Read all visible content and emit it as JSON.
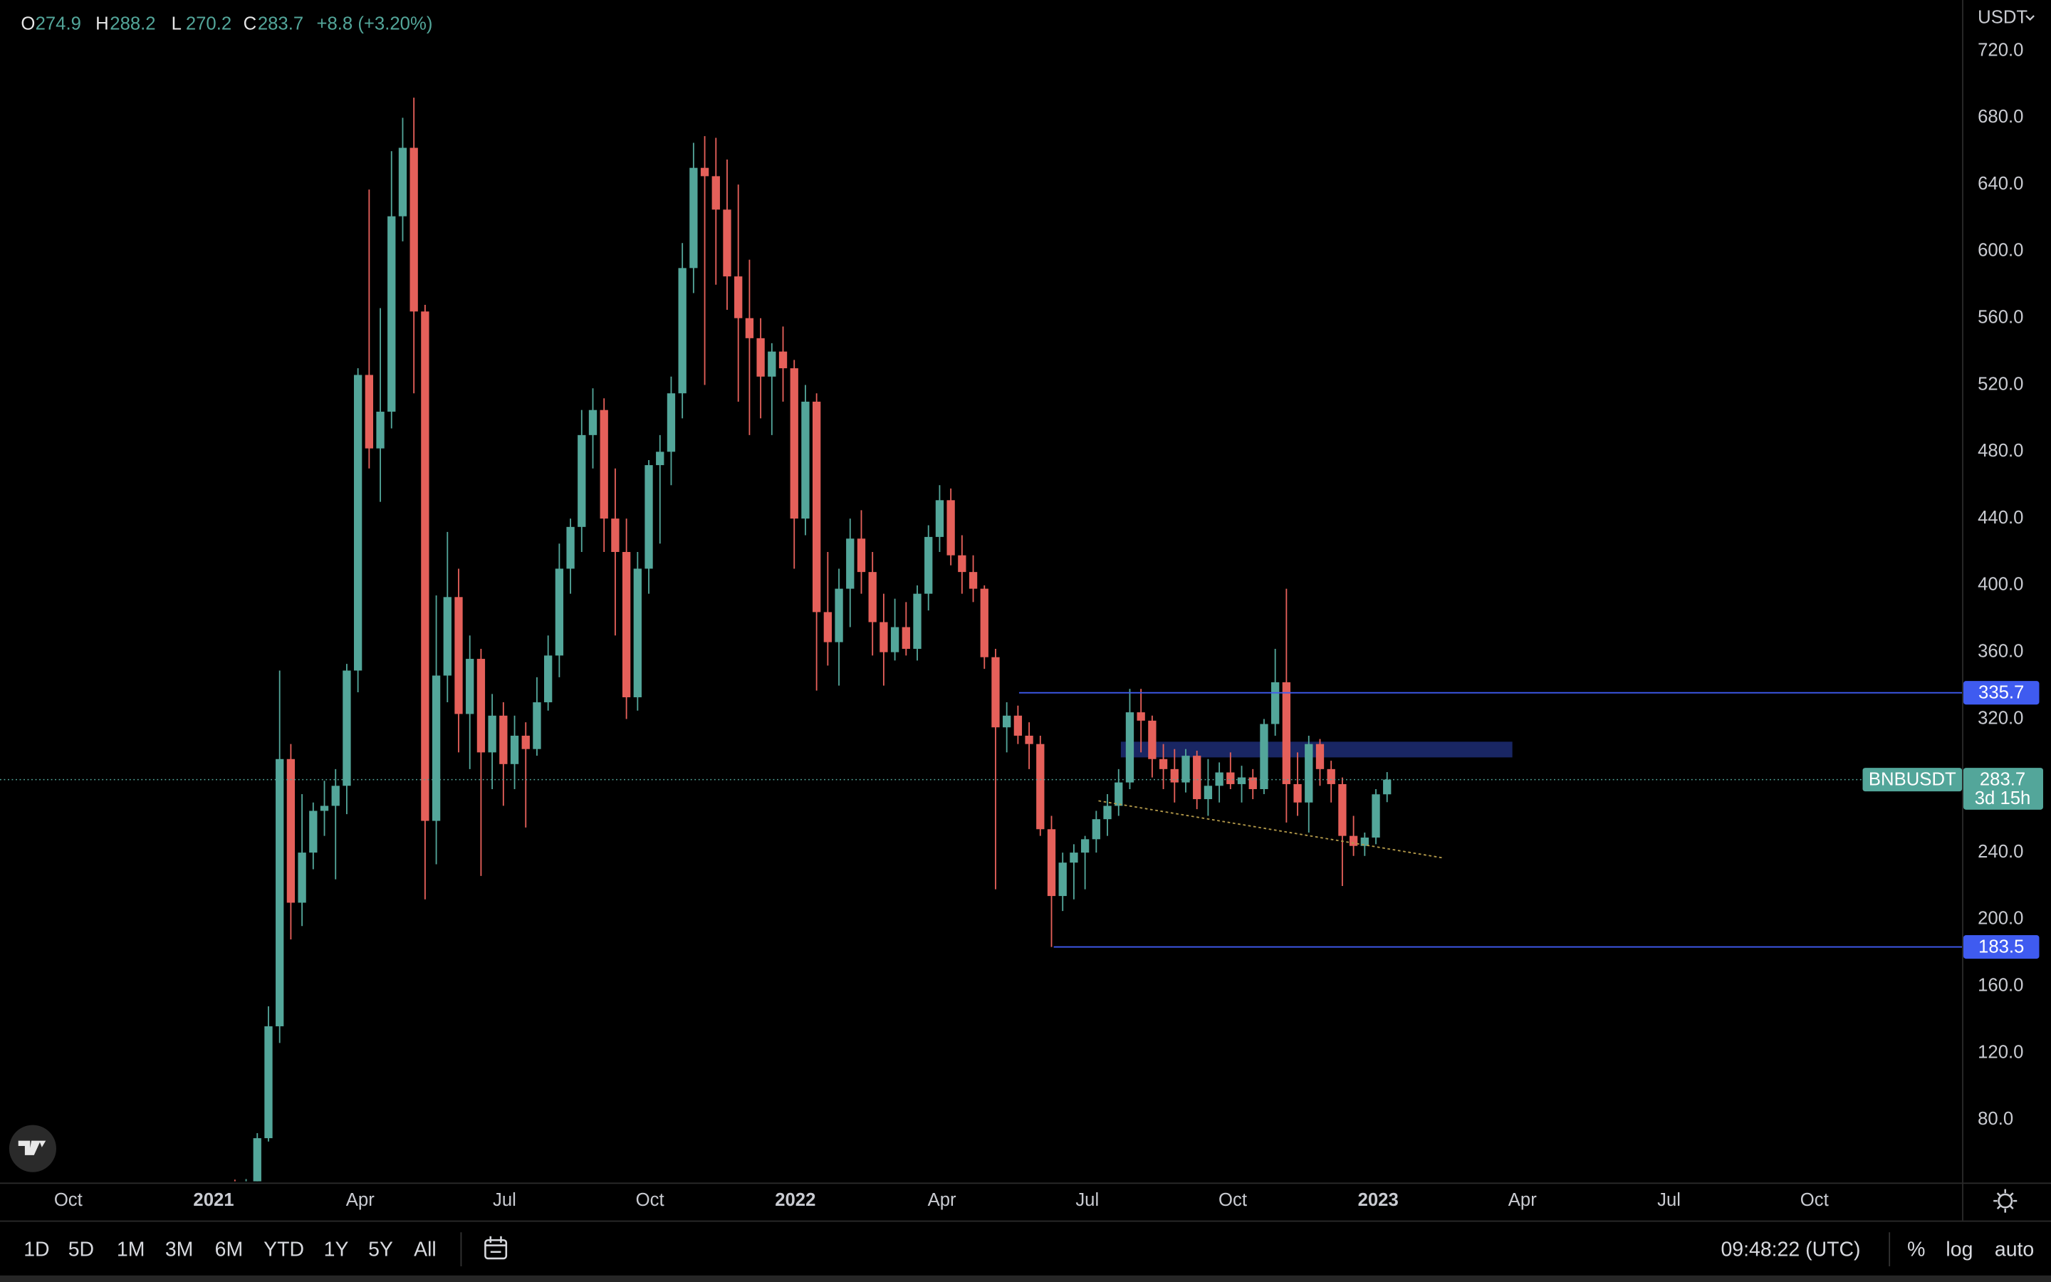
{
  "chart_data": {
    "type": "candlestick",
    "symbol": "BNBUSDT",
    "currency": "USDT",
    "ohlc_letters": [
      "O",
      "H",
      "L",
      "C"
    ],
    "change_label": "+8.8 (+3.20%)",
    "countdown": "3d 15h",
    "up_color": "#53a69a",
    "down_color": "#e5605a",
    "log_scale": false,
    "grid": false,
    "open": [
      37.4,
      41.9,
      40.0,
      42.4,
      69.0,
      136.0,
      296.0,
      210.0,
      240.0,
      265.0,
      268.0,
      280.0,
      349.0,
      526.0,
      482.0,
      504.0,
      621.0,
      662.0,
      564.0,
      259.0,
      346.0,
      393.0,
      323.0,
      356.0,
      300.0,
      322.0,
      293.0,
      310.0,
      302.0,
      330.0,
      358.0,
      410.0,
      435.0,
      490.0,
      505.0,
      440.0,
      420.0,
      333.0,
      410.0,
      472.0,
      480.0,
      515.0,
      590.0,
      650.0,
      645.0,
      625.0,
      585.0,
      560.0,
      548.0,
      525.0,
      540.0,
      530.0,
      440.0,
      510.0,
      384.0,
      366.0,
      398.0,
      428.0,
      408.0,
      378.0,
      360.0,
      375.0,
      362.0,
      395.0,
      429.0,
      451.0,
      418.0,
      408.0,
      398.0,
      357.0,
      315.0,
      322.0,
      310.0,
      305.0,
      254.0,
      214.0,
      234.0,
      240.0,
      248.0,
      260.0,
      268.0,
      282.0,
      324.0,
      319.0,
      296.0,
      290.0,
      282.0,
      298.0,
      272.0,
      280.0,
      288.0,
      281.0,
      285.0,
      278.0,
      317.0,
      342.0,
      281.0,
      270.0,
      305.0,
      290.0,
      281.0,
      250.0,
      244.0,
      249.0,
      274.9
    ],
    "high": [
      43.0,
      44.2,
      44.5,
      72.0,
      148.0,
      349.0,
      305.0,
      275.0,
      270.0,
      283.0,
      290.0,
      353.0,
      530.0,
      637.0,
      566.0,
      660.0,
      680.0,
      692.0,
      568.0,
      394.0,
      432.0,
      410.0,
      370.0,
      362.0,
      335.0,
      330.0,
      322.0,
      318.0,
      345.0,
      370.0,
      425.0,
      440.0,
      505.0,
      518.0,
      512.0,
      470.0,
      440.0,
      420.0,
      475.0,
      490.0,
      525.0,
      605.0,
      665.0,
      669.0,
      668.0,
      655.0,
      640.0,
      595.0,
      560.0,
      545.0,
      555.0,
      535.0,
      520.0,
      515.0,
      420.0,
      410.0,
      440.0,
      445.0,
      420.0,
      395.0,
      392.0,
      390.0,
      400.0,
      436.0,
      460.0,
      458.0,
      430.0,
      418.0,
      400.0,
      362.0,
      330.0,
      328.0,
      318.0,
      310.0,
      262.0,
      240.0,
      245.0,
      250.0,
      265.0,
      275.0,
      290.0,
      338.0,
      338.0,
      322.0,
      305.0,
      302.0,
      302.0,
      301.0,
      296.0,
      294.0,
      300.0,
      292.0,
      290.0,
      320.0,
      362.0,
      398.0,
      300.0,
      310.0,
      308.0,
      295.0,
      285.0,
      262.0,
      252.0,
      278.0,
      288.2
    ],
    "low": [
      35.5,
      38.7,
      36.6,
      42.0,
      67.0,
      126.0,
      188.0,
      196.0,
      230.0,
      250.0,
      224.0,
      263.0,
      336.0,
      470.0,
      450.0,
      494.0,
      606.0,
      515.0,
      212.0,
      233.0,
      330.0,
      300.0,
      290.0,
      226.0,
      278.0,
      268.0,
      278.0,
      255.0,
      298.0,
      325.0,
      345.0,
      395.0,
      420.0,
      470.0,
      420.0,
      370.0,
      320.0,
      325.0,
      395.0,
      425.0,
      460.0,
      500.0,
      575.0,
      520.0,
      580.0,
      565.0,
      510.0,
      490.0,
      500.0,
      490.0,
      510.0,
      410.0,
      430.0,
      337.0,
      352.0,
      340.0,
      375.0,
      395.0,
      358.0,
      340.0,
      355.0,
      358.0,
      355.0,
      385.0,
      420.0,
      412.0,
      395.0,
      390.0,
      350.0,
      218.0,
      300.0,
      305.0,
      290.0,
      250.0,
      183.5,
      205.0,
      212.0,
      218.0,
      240.0,
      250.0,
      262.0,
      278.0,
      300.0,
      285.0,
      278.0,
      270.0,
      276.0,
      266.0,
      262.0,
      270.0,
      278.0,
      270.0,
      272.0,
      275.0,
      310.0,
      258.0,
      262.0,
      252.0,
      280.0,
      270.0,
      220.0,
      238.0,
      238.0,
      245.0,
      270.2
    ],
    "close": [
      41.9,
      40.0,
      42.4,
      69.0,
      136.0,
      296.0,
      210.0,
      240.0,
      265.0,
      268.0,
      280.0,
      349.0,
      526.0,
      482.0,
      504.0,
      621.0,
      662.0,
      564.0,
      259.0,
      346.0,
      393.0,
      323.0,
      356.0,
      300.0,
      322.0,
      293.0,
      310.0,
      302.0,
      330.0,
      358.0,
      410.0,
      435.0,
      490.0,
      505.0,
      440.0,
      420.0,
      333.0,
      410.0,
      472.0,
      480.0,
      515.0,
      590.0,
      650.0,
      645.0,
      625.0,
      585.0,
      560.0,
      548.0,
      525.0,
      540.0,
      530.0,
      440.0,
      510.0,
      384.0,
      366.0,
      398.0,
      428.0,
      408.0,
      378.0,
      360.0,
      375.0,
      362.0,
      395.0,
      429.0,
      451.0,
      418.0,
      408.0,
      398.0,
      357.0,
      315.0,
      322.0,
      310.0,
      305.0,
      254.0,
      214.0,
      234.0,
      240.0,
      248.0,
      260.0,
      268.0,
      282.0,
      324.0,
      319.0,
      296.0,
      290.0,
      282.0,
      298.0,
      272.0,
      280.0,
      288.0,
      281.0,
      285.0,
      278.0,
      317.0,
      342.0,
      281.0,
      270.0,
      305.0,
      290.0,
      281.0,
      250.0,
      244.0,
      249.0,
      274.9,
      283.7
    ],
    "xlim": [
      -20,
      155.4
    ],
    "xticks": [
      {
        "value": -13.9,
        "label": "Oct"
      },
      {
        "value": -0.9,
        "label": "2021"
      },
      {
        "value": 12.2,
        "label": "Apr"
      },
      {
        "value": 25.1,
        "label": "Jul"
      },
      {
        "value": 38.1,
        "label": "Oct"
      },
      {
        "value": 51.1,
        "label": "2022"
      },
      {
        "value": 64.2,
        "label": "Apr"
      },
      {
        "value": 77.2,
        "label": "Jul"
      },
      {
        "value": 90.2,
        "label": "Oct"
      },
      {
        "value": 103.2,
        "label": "2023"
      },
      {
        "value": 116.1,
        "label": "Apr"
      },
      {
        "value": 129.2,
        "label": "Jul"
      },
      {
        "value": 142.2,
        "label": "Oct"
      }
    ],
    "ylim": [
      43.2,
      750.5
    ],
    "yticks": [
      {
        "value": 80,
        "label": "80.0"
      },
      {
        "value": 120,
        "label": "120.0"
      },
      {
        "value": 160,
        "label": "160.0"
      },
      {
        "value": 200,
        "label": "200.0"
      },
      {
        "value": 240,
        "label": "240.0"
      },
      {
        "value": 280,
        "label": "280.0"
      },
      {
        "value": 320,
        "label": "320.0"
      },
      {
        "value": 360,
        "label": "360.0"
      },
      {
        "value": 400,
        "label": "400.0"
      },
      {
        "value": 440,
        "label": "440.0"
      },
      {
        "value": 480,
        "label": "480.0"
      },
      {
        "value": 520,
        "label": "520.0"
      },
      {
        "value": 560,
        "label": "560.0"
      },
      {
        "value": 600,
        "label": "600.0"
      },
      {
        "value": 640,
        "label": "640.0"
      },
      {
        "value": 680,
        "label": "680.0"
      },
      {
        "value": 720,
        "label": "720.0"
      }
    ],
    "levels": [
      {
        "value": 335.7,
        "x_start": 71.1,
        "color": "#3f5bf0"
      },
      {
        "value": 183.5,
        "x_start": 74.2,
        "color": "#3f5bf0"
      }
    ],
    "zone": {
      "x": [
        80.2,
        115.2
      ],
      "y": [
        297,
        306.4
      ],
      "color": "#1c2a6e"
    },
    "trendline": {
      "x": [
        78.2,
        109.1
      ],
      "y": [
        271,
        236.7
      ],
      "color": "#b49a4a"
    }
  },
  "toolbar": {
    "ranges": [
      "1D",
      "5D",
      "1M",
      "3M",
      "6M",
      "YTD",
      "1Y",
      "5Y",
      "All"
    ],
    "clock": "09:48:22 (UTC)",
    "options": [
      "%",
      "log",
      "auto"
    ]
  }
}
